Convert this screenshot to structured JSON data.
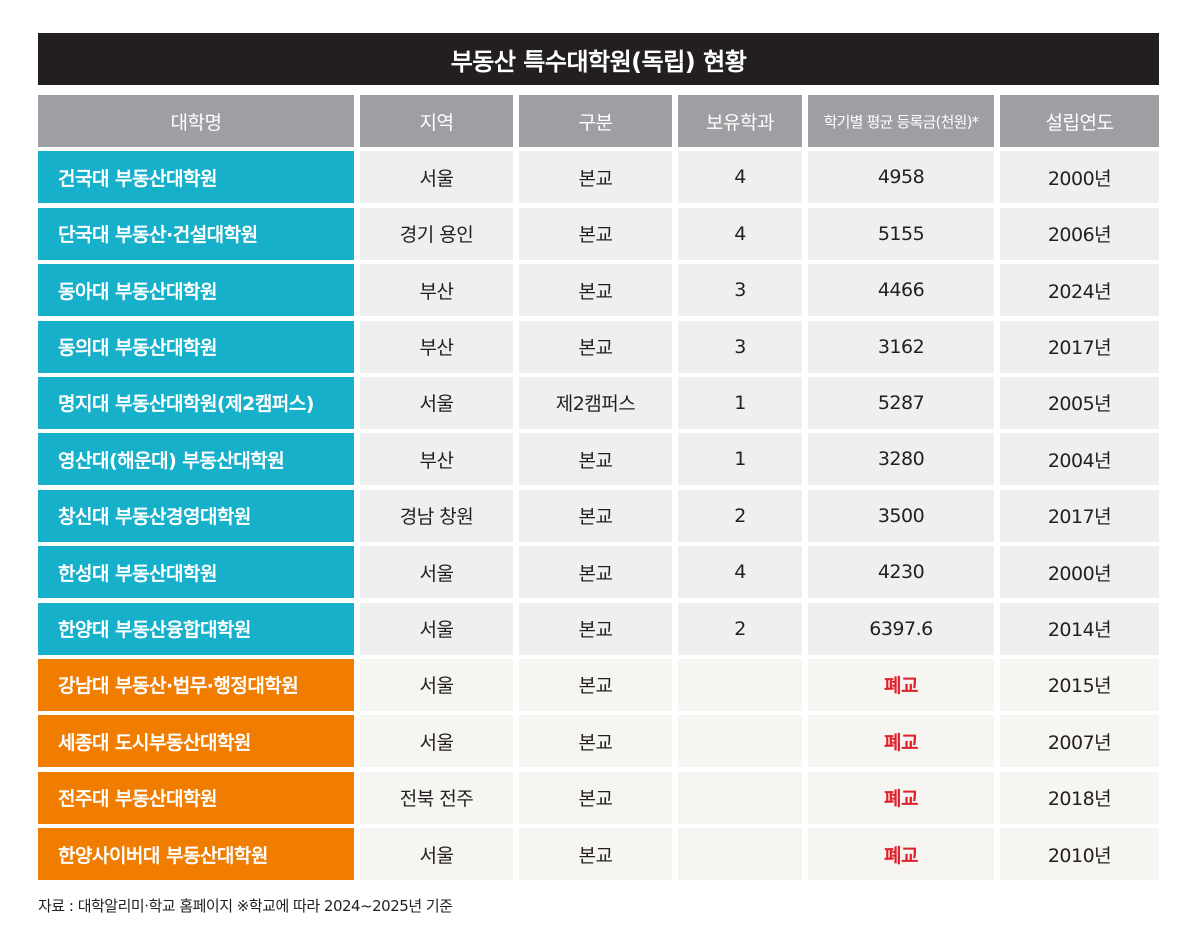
{
  "title": "부동산 특수대학원(독립) 현황",
  "headers": [
    "대학명",
    "지역",
    "구분",
    "보유학과",
    "학기별 평균 등록금(천원)*",
    "설립연도"
  ],
  "rows": [
    {
      "name": "건국대 부동산대학원",
      "region": "서울",
      "type": "본교",
      "depts": "4",
      "tuition": "4958",
      "year": "2000년",
      "status": "active"
    },
    {
      "name": "단국대 부동산·건설대학원",
      "region": "경기 용인",
      "type": "본교",
      "depts": "4",
      "tuition": "5155",
      "year": "2006년",
      "status": "active"
    },
    {
      "name": "동아대 부동산대학원",
      "region": "부산",
      "type": "본교",
      "depts": "3",
      "tuition": "4466",
      "year": "2024년",
      "status": "active"
    },
    {
      "name": "동의대 부동산대학원",
      "region": "부산",
      "type": "본교",
      "depts": "3",
      "tuition": "3162",
      "year": "2017년",
      "status": "active"
    },
    {
      "name": "명지대 부동산대학원(제2캠퍼스)",
      "region": "서울",
      "type": "제2캠퍼스",
      "depts": "1",
      "tuition": "5287",
      "year": "2005년",
      "status": "active"
    },
    {
      "name": "영산대(해운대) 부동산대학원",
      "region": "부산",
      "type": "본교",
      "depts": "1",
      "tuition": "3280",
      "year": "2004년",
      "status": "active"
    },
    {
      "name": "창신대 부동산경영대학원",
      "region": "경남 창원",
      "type": "본교",
      "depts": "2",
      "tuition": "3500",
      "year": "2017년",
      "status": "active"
    },
    {
      "name": "한성대 부동산대학원",
      "region": "서울",
      "type": "본교",
      "depts": "4",
      "tuition": "4230",
      "year": "2000년",
      "status": "active"
    },
    {
      "name": "한양대 부동산융합대학원",
      "region": "서울",
      "type": "본교",
      "depts": "2",
      "tuition": "6397.6",
      "year": "2014년",
      "status": "active"
    },
    {
      "name": "강남대 부동산·법무·행정대학원",
      "region": "서울",
      "type": "본교",
      "depts": "",
      "tuition": "폐교",
      "year": "2015년",
      "status": "closed"
    },
    {
      "name": "세종대 도시부동산대학원",
      "region": "서울",
      "type": "본교",
      "depts": "",
      "tuition": "폐교",
      "year": "2007년",
      "status": "closed"
    },
    {
      "name": "전주대 부동산대학원",
      "region": "전북 전주",
      "type": "본교",
      "depts": "",
      "tuition": "폐교",
      "year": "2018년",
      "status": "closed"
    },
    {
      "name": "한양사이버대 부동산대학원",
      "region": "서울",
      "type": "본교",
      "depts": "",
      "tuition": "폐교",
      "year": "2010년",
      "status": "closed"
    }
  ],
  "footnote": "자료 : 대학알리미·학교 홈페이지 ※학교에 따라 2024~2025년 기준",
  "colors": {
    "active_accent": "#17b0cb",
    "closed_accent": "#f07d00",
    "closed_text": "#e1202b",
    "header_bg": "#9d9fa2",
    "title_bg": "#231f20"
  }
}
